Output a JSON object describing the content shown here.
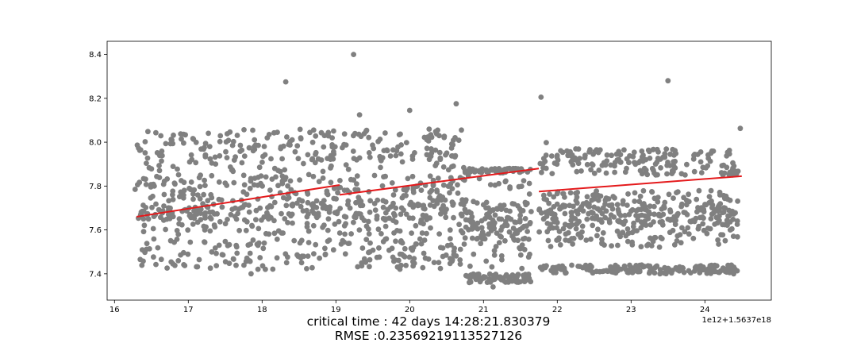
{
  "chart_data": {
    "type": "scatter",
    "title": "",
    "xlabel": "",
    "ylabel": "",
    "xlim": [
      15.9,
      24.9
    ],
    "ylim": [
      7.28,
      8.46
    ],
    "x_ticks": [
      16,
      17,
      18,
      19,
      20,
      21,
      22,
      23,
      24
    ],
    "x_tick_labels": [
      "16",
      "17",
      "18",
      "19",
      "20",
      "21",
      "22",
      "23",
      "24"
    ],
    "y_ticks": [
      7.4,
      7.6,
      7.8,
      8.0,
      8.2,
      8.4
    ],
    "y_tick_labels": [
      "7.4",
      "7.6",
      "7.8",
      "8.0",
      "8.2",
      "8.4"
    ],
    "x_offset_label": "1e12+1.5637e18",
    "grid": false,
    "point_color": "#808080",
    "line_color": "#e41a1c",
    "bands": [
      {
        "x0": 16.3,
        "x1": 21.65,
        "y0": 7.42,
        "y1": 7.56,
        "n": 200
      },
      {
        "x0": 16.3,
        "x1": 20.75,
        "y0": 7.92,
        "y1": 8.06,
        "n": 180
      },
      {
        "x0": 16.3,
        "x1": 20.75,
        "y0": 7.65,
        "y1": 7.95,
        "n": 200
      },
      {
        "x0": 16.3,
        "x1": 21.65,
        "y0": 7.65,
        "y1": 7.85,
        "n": 200
      },
      {
        "x0": 16.3,
        "x1": 21.65,
        "y0": 7.58,
        "y1": 7.72,
        "n": 200
      },
      {
        "x0": 20.75,
        "x1": 21.65,
        "y0": 7.55,
        "y1": 7.65,
        "n": 60
      },
      {
        "x0": 20.75,
        "x1": 21.65,
        "y0": 7.86,
        "y1": 7.88,
        "n": 50
      },
      {
        "x0": 20.75,
        "x1": 21.65,
        "y0": 7.36,
        "y1": 7.4,
        "n": 70
      },
      {
        "x0": 21.75,
        "x1": 24.45,
        "y0": 7.4,
        "y1": 7.44,
        "n": 160
      },
      {
        "x0": 21.75,
        "x1": 24.45,
        "y0": 7.85,
        "y1": 7.97,
        "n": 170
      },
      {
        "x0": 21.75,
        "x1": 24.45,
        "y0": 7.52,
        "y1": 7.78,
        "n": 230
      },
      {
        "x0": 21.75,
        "x1": 24.45,
        "y0": 7.62,
        "y1": 7.72,
        "n": 150
      }
    ],
    "outliers": [
      {
        "x": 18.32,
        "y": 8.275
      },
      {
        "x": 19.24,
        "y": 8.4
      },
      {
        "x": 21.78,
        "y": 8.205
      },
      {
        "x": 23.5,
        "y": 8.28
      },
      {
        "x": 20.63,
        "y": 8.175
      },
      {
        "x": 20.0,
        "y": 8.145
      },
      {
        "x": 19.32,
        "y": 8.125
      },
      {
        "x": 21.85,
        "y": 7.998
      },
      {
        "x": 24.48,
        "y": 8.063
      },
      {
        "x": 16.28,
        "y": 7.785
      },
      {
        "x": 17.85,
        "y": 7.4
      },
      {
        "x": 21.13,
        "y": 7.34
      }
    ],
    "trend_lines": [
      {
        "x": [
          16.3,
          19.05
        ],
        "y": [
          7.66,
          7.805
        ]
      },
      {
        "x": [
          19.05,
          21.75
        ],
        "y": [
          7.76,
          7.88
        ]
      },
      {
        "x": [
          21.75,
          24.5
        ],
        "y": [
          7.775,
          7.845
        ]
      }
    ]
  },
  "caption": {
    "line1": "critical time : 42 days 14:28:21.830379",
    "line2": "RMSE :0.2356921911352712­6"
  }
}
